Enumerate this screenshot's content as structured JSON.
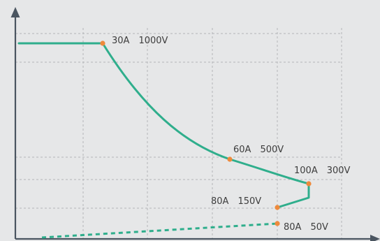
{
  "chart_data": {
    "type": "line",
    "title": "",
    "xlabel": "",
    "ylabel": "",
    "grid": true,
    "colors": {
      "background": "#e6e7e8",
      "curve": "#2fae8c",
      "points": "#ee8a3c",
      "axis": "#4a5560",
      "grid": "#b4b6b8",
      "label": "#3d3d3d"
    },
    "series": [
      {
        "style": "solid",
        "points": [
          {
            "current_a": 30,
            "voltage_v": 1000
          },
          {
            "current_a": 60,
            "voltage_v": 500
          },
          {
            "current_a": 100,
            "voltage_v": 300
          },
          {
            "current_a": 80,
            "voltage_v": 150
          }
        ]
      },
      {
        "style": "dashed",
        "points": [
          {
            "current_a": 80,
            "voltage_v": 50
          }
        ]
      }
    ],
    "annotations": [
      {
        "current": "30A",
        "voltage": "1000V"
      },
      {
        "current": "60A",
        "voltage": "500V"
      },
      {
        "current": "100A",
        "voltage": "300V"
      },
      {
        "current": "80A",
        "voltage": "150V"
      },
      {
        "current": "80A",
        "voltage": "50V"
      }
    ]
  }
}
